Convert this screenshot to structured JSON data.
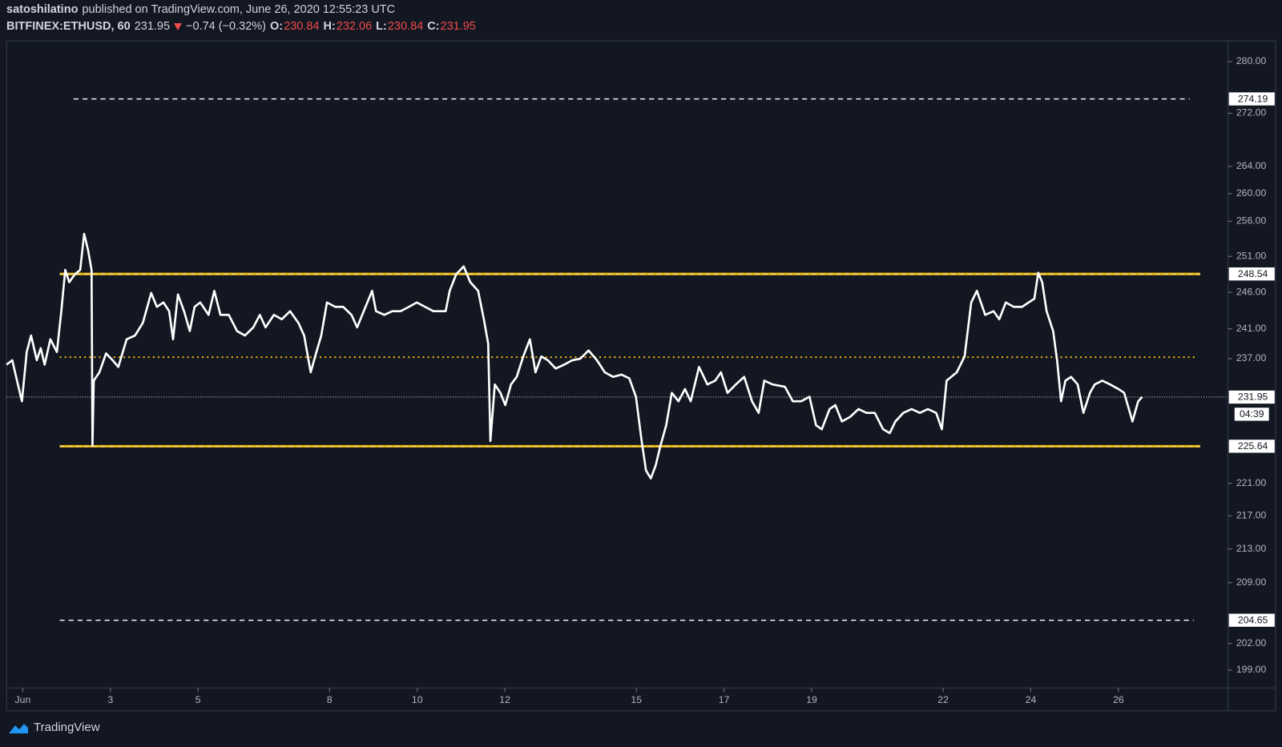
{
  "header": {
    "author": "satoshilatino",
    "published": "published on TradingView.com, June 26, 2020 12:55:23 UTC",
    "symbol": "BITFINEX:ETHUSD, 60",
    "last": 231.95,
    "change": "−0.74 (−0.32%)",
    "open_label": "O:",
    "open": 230.84,
    "high_label": "H:",
    "high": 232.06,
    "low_label": "L:",
    "low": 230.84,
    "close_label": "C:",
    "close": 231.95
  },
  "footer": {
    "brand": "TradingView"
  },
  "chart_data": {
    "type": "line",
    "log_scale": true,
    "grid": false,
    "xlim": [
      0.63,
      28.5
    ],
    "ylim": [
      197.2,
      283.0
    ],
    "xticks": [
      {
        "value": 1,
        "label": "Jun"
      },
      3,
      5,
      8,
      10,
      12,
      15,
      17,
      19,
      22,
      24,
      26
    ],
    "yticks": [
      {
        "value": 280,
        "label": "280.00"
      },
      {
        "value": 272,
        "label": "272.00"
      },
      {
        "value": 264,
        "label": "264.00"
      },
      {
        "value": 260,
        "label": "260.00"
      },
      {
        "value": 256,
        "label": "256.00"
      },
      {
        "value": 251,
        "label": "251.00"
      },
      {
        "value": 246,
        "label": "246.00"
      },
      {
        "value": 241,
        "label": "241.00"
      },
      {
        "value": 237,
        "label": "237.00"
      },
      {
        "value": 221,
        "label": "221.00"
      },
      {
        "value": 217,
        "label": "217.00"
      },
      {
        "value": 213,
        "label": "213.00"
      },
      {
        "value": 209,
        "label": "209.00"
      },
      {
        "value": 202,
        "label": "202.00"
      },
      {
        "value": 199,
        "label": "199.00"
      }
    ],
    "series": [
      {
        "color": "#ffffff",
        "x": [
          0.63,
          0.76,
          0.89,
          0.98,
          1.09,
          1.19,
          1.32,
          1.41,
          1.5,
          1.63,
          1.78,
          1.88,
          1.97,
          2.06,
          2.19,
          2.31,
          2.4,
          2.49,
          2.57,
          2.59,
          2.62,
          2.75,
          2.9,
          3.05,
          3.18,
          3.37,
          3.56,
          3.74,
          3.93,
          4.06,
          4.21,
          4.34,
          4.43,
          4.54,
          4.68,
          4.81,
          4.92,
          5.05,
          5.24,
          5.37,
          5.51,
          5.7,
          5.89,
          6.07,
          6.26,
          6.41,
          6.54,
          6.73,
          6.91,
          7.1,
          7.29,
          7.42,
          7.57,
          7.7,
          7.81,
          7.94,
          8.13,
          8.31,
          8.5,
          8.63,
          8.78,
          8.97,
          9.06,
          9.25,
          9.43,
          9.62,
          9.81,
          9.99,
          10.18,
          10.37,
          10.65,
          10.74,
          10.89,
          11.06,
          11.21,
          11.39,
          11.52,
          11.62,
          11.67,
          11.77,
          11.9,
          12.01,
          12.14,
          12.27,
          12.42,
          12.57,
          12.7,
          12.83,
          12.98,
          13.16,
          13.35,
          13.54,
          13.72,
          13.91,
          14.1,
          14.28,
          14.47,
          14.66,
          14.84,
          14.99,
          15.12,
          15.22,
          15.33,
          15.44,
          15.55,
          15.68,
          15.81,
          15.96,
          16.11,
          16.24,
          16.43,
          16.62,
          16.8,
          16.93,
          17.08,
          17.27,
          17.46,
          17.64,
          17.79,
          17.92,
          18.11,
          18.39,
          18.57,
          18.76,
          18.95,
          19.1,
          19.23,
          19.41,
          19.54,
          19.69,
          19.88,
          20.07,
          20.25,
          20.44,
          20.63,
          20.78,
          20.91,
          21.09,
          21.28,
          21.47,
          21.65,
          21.84,
          21.97,
          22.08,
          22.31,
          22.49,
          22.64,
          22.77,
          22.96,
          23.15,
          23.28,
          23.43,
          23.61,
          23.8,
          23.95,
          24.08,
          24.17,
          24.26,
          24.36,
          24.51,
          24.6,
          24.69,
          24.79,
          24.92,
          25.07,
          25.2,
          25.35,
          25.46,
          25.63,
          25.81,
          26.0,
          26.13,
          26.32,
          26.45,
          26.54
        ],
        "values": [
          236.2,
          236.8,
          233.6,
          231.4,
          237.9,
          240.1,
          236.8,
          238.4,
          236.2,
          239.6,
          237.9,
          243.4,
          249.1,
          247.4,
          248.5,
          249.1,
          254.2,
          251.9,
          249.1,
          225.7,
          234.1,
          235.2,
          237.7,
          236.8,
          235.9,
          239.6,
          240.1,
          241.8,
          245.9,
          244.0,
          244.6,
          243.4,
          239.6,
          245.7,
          243.4,
          240.7,
          244.0,
          244.6,
          242.9,
          246.2,
          242.9,
          242.9,
          240.7,
          240.1,
          241.2,
          242.9,
          241.2,
          242.9,
          242.3,
          243.4,
          241.8,
          240.1,
          235.2,
          237.9,
          240.1,
          244.6,
          244.0,
          244.0,
          242.9,
          241.2,
          243.4,
          246.2,
          243.4,
          242.9,
          243.4,
          243.4,
          244.0,
          244.6,
          244.0,
          243.4,
          243.4,
          246.2,
          248.5,
          249.6,
          247.4,
          246.2,
          242.3,
          239.0,
          226.3,
          233.6,
          232.5,
          230.9,
          233.6,
          234.6,
          237.3,
          239.6,
          235.2,
          237.3,
          236.8,
          235.7,
          236.2,
          236.8,
          237.0,
          238.1,
          236.8,
          235.2,
          234.6,
          234.9,
          234.4,
          232.0,
          226.3,
          222.6,
          221.6,
          223.2,
          225.7,
          228.3,
          232.5,
          231.4,
          233.0,
          231.4,
          235.9,
          233.6,
          234.1,
          235.2,
          232.5,
          233.6,
          234.6,
          231.4,
          229.9,
          234.1,
          233.6,
          233.3,
          231.4,
          231.4,
          232.0,
          228.3,
          227.8,
          230.4,
          230.9,
          228.8,
          229.4,
          230.4,
          229.9,
          229.9,
          227.8,
          227.3,
          228.8,
          229.9,
          230.4,
          229.9,
          230.4,
          229.9,
          227.8,
          234.1,
          235.2,
          237.3,
          244.6,
          246.2,
          242.9,
          243.4,
          242.3,
          244.6,
          244.0,
          244.0,
          244.6,
          245.1,
          248.7,
          247.4,
          243.4,
          240.7,
          236.8,
          231.4,
          234.1,
          234.6,
          233.6,
          229.9,
          232.5,
          233.6,
          234.1,
          233.6,
          233.0,
          232.5,
          228.8,
          231.4,
          231.95
        ]
      }
    ],
    "levels": [
      {
        "value": 274.19,
        "style": "dashed",
        "color": "#ffffff"
      },
      {
        "value": 248.54,
        "style": "solid",
        "color": "#f0b90b"
      },
      {
        "value": 237.2,
        "style": "dotted",
        "color": "#f0b90b"
      },
      {
        "value": 225.64,
        "style": "solid",
        "color": "#f0b90b"
      },
      {
        "value": 204.65,
        "style": "dashed",
        "color": "#ffffff"
      }
    ],
    "current": {
      "value": 231.95,
      "countdown": "04:39"
    }
  }
}
